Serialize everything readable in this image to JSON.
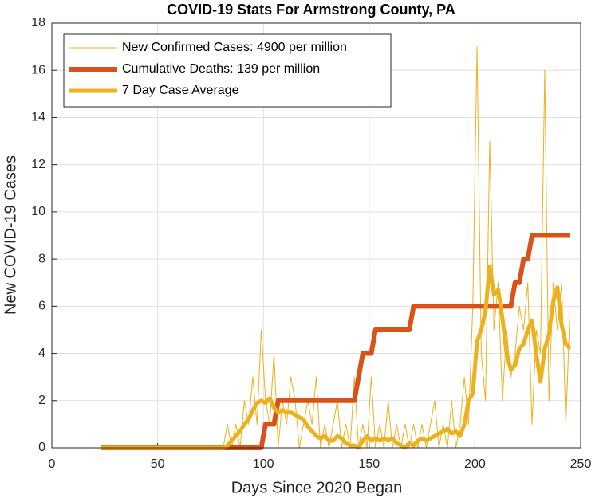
{
  "chart_data": {
    "type": "line",
    "title": "COVID-19 Stats For Armstrong County, PA",
    "x_label": "Days Since 2020 Began",
    "y_label": "New COVID-19 Cases",
    "xlim": [
      0,
      250
    ],
    "xticks": [
      0,
      50,
      100,
      150,
      200,
      250
    ],
    "ylim": [
      0,
      18
    ],
    "yticks": [
      0,
      2,
      4,
      6,
      8,
      10,
      12,
      14,
      16,
      18
    ],
    "grid": true,
    "legend": "top-left",
    "x": [
      23,
      25,
      27,
      29,
      31,
      33,
      35,
      37,
      39,
      41,
      43,
      45,
      47,
      49,
      51,
      53,
      55,
      57,
      59,
      61,
      63,
      65,
      67,
      69,
      71,
      73,
      75,
      77,
      79,
      81,
      83,
      85,
      87,
      89,
      91,
      93,
      95,
      97,
      99,
      101,
      103,
      105,
      107,
      109,
      111,
      113,
      115,
      117,
      119,
      121,
      123,
      125,
      127,
      129,
      131,
      133,
      135,
      137,
      139,
      141,
      143,
      145,
      147,
      149,
      151,
      153,
      155,
      157,
      159,
      161,
      163,
      165,
      167,
      169,
      171,
      173,
      175,
      177,
      179,
      181,
      183,
      185,
      187,
      189,
      191,
      193,
      195,
      197,
      199,
      201,
      203,
      205,
      207,
      209,
      211,
      213,
      215,
      217,
      219,
      221,
      223,
      225,
      227,
      229,
      231,
      233,
      235,
      237,
      239,
      241,
      243,
      245
    ],
    "series": [
      {
        "name": "New Confirmed Cases: 4900 per million",
        "color": "#edb120",
        "width": 1,
        "values": [
          0,
          0,
          0,
          0,
          0,
          0,
          0,
          0,
          0,
          0,
          0,
          0,
          0,
          0,
          0,
          0,
          0,
          0,
          0,
          0,
          0,
          0,
          0,
          0,
          0,
          0,
          0,
          0,
          0,
          0,
          1,
          0,
          1,
          0,
          2,
          1,
          3,
          1,
          5,
          2,
          1,
          4,
          0,
          2,
          1,
          3,
          2,
          0,
          1,
          2,
          1,
          3,
          0,
          1,
          0,
          1,
          2,
          0,
          1,
          0,
          3,
          0,
          1,
          0,
          3,
          0,
          1,
          0,
          2,
          0,
          1,
          0,
          1,
          0,
          1,
          0,
          1,
          0,
          1,
          2,
          0,
          1,
          0,
          2,
          0,
          1,
          3,
          1,
          6,
          17,
          4,
          2,
          13,
          5,
          7,
          2,
          5,
          3,
          4,
          6,
          5,
          7,
          1,
          5,
          4,
          16,
          2,
          7,
          5,
          7,
          1,
          6
        ]
      },
      {
        "name": "Cumulative Deaths: 139 per million",
        "color": "#d95319",
        "width": 6,
        "values": [
          0,
          0,
          0,
          0,
          0,
          0,
          0,
          0,
          0,
          0,
          0,
          0,
          0,
          0,
          0,
          0,
          0,
          0,
          0,
          0,
          0,
          0,
          0,
          0,
          0,
          0,
          0,
          0,
          0,
          0,
          0,
          0,
          0,
          0,
          0,
          0,
          0,
          0,
          0,
          1,
          1,
          1,
          2,
          2,
          2,
          2,
          2,
          2,
          2,
          2,
          2,
          2,
          2,
          2,
          2,
          2,
          2,
          2,
          2,
          2,
          2,
          3,
          4,
          4,
          4,
          5,
          5,
          5,
          5,
          5,
          5,
          5,
          5,
          5,
          6,
          6,
          6,
          6,
          6,
          6,
          6,
          6,
          6,
          6,
          6,
          6,
          6,
          6,
          6,
          6,
          6,
          6,
          6,
          6,
          6,
          6,
          6,
          6,
          7,
          7,
          8,
          8,
          9,
          9,
          9,
          9,
          9,
          9,
          9,
          9,
          9,
          9
        ]
      },
      {
        "name": "7 Day Case Average",
        "color": "#edb120",
        "width": 5,
        "values": [
          0,
          0,
          0,
          0,
          0,
          0,
          0,
          0,
          0,
          0,
          0,
          0,
          0,
          0,
          0,
          0,
          0,
          0,
          0,
          0,
          0,
          0,
          0,
          0,
          0,
          0,
          0,
          0,
          0,
          0,
          0.1,
          0.3,
          0.5,
          0.7,
          1,
          1.2,
          1.6,
          1.9,
          2,
          1.9,
          2.1,
          1.7,
          1.5,
          1.6,
          1.5,
          1.5,
          1.4,
          1.3,
          1.2,
          0.9,
          0.7,
          0.5,
          0.4,
          0.5,
          0.3,
          0.3,
          0.5,
          0.4,
          0.2,
          0.1,
          0.1,
          0,
          0.3,
          0.5,
          0.3,
          0.4,
          0.3,
          0.4,
          0.3,
          0.4,
          0.2,
          0.1,
          0,
          0.2,
          0.1,
          0.3,
          0.4,
          0.3,
          0.4,
          0.5,
          0.6,
          0.7,
          0.8,
          0.6,
          0.7,
          0.5,
          1,
          2,
          2.3,
          4.5,
          5,
          5.8,
          7.7,
          6.5,
          6.7,
          5.5,
          4,
          3.3,
          3.5,
          4.2,
          4.4,
          5,
          5.4,
          4,
          2.8,
          4.2,
          4.8,
          6.2,
          6.8,
          5.2,
          4.4,
          4.2
        ]
      }
    ]
  }
}
